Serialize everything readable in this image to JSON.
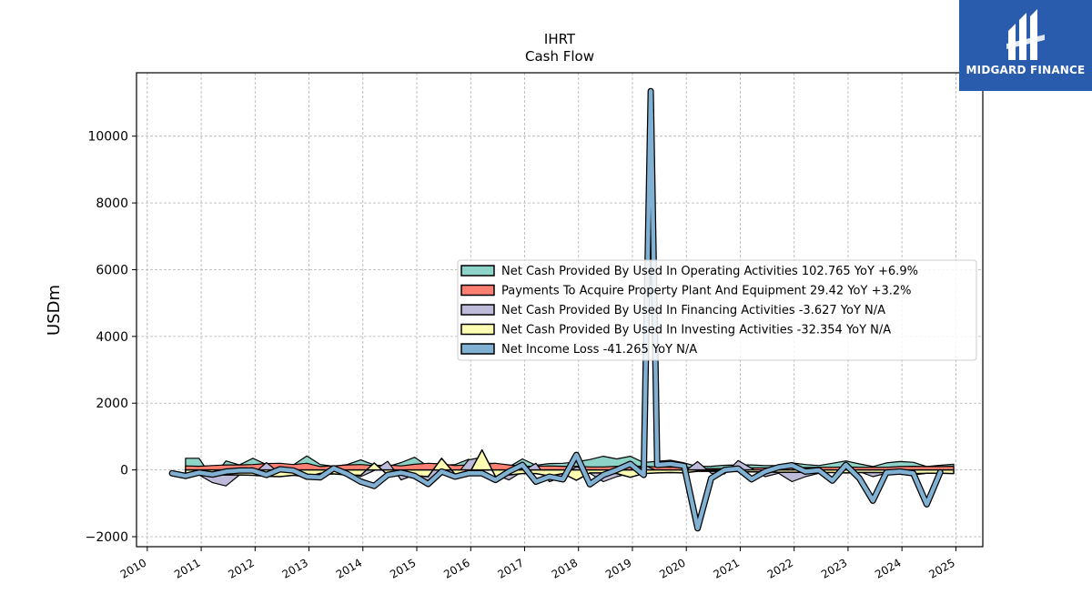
{
  "logo": {
    "text": "MIDGARD FINANCE",
    "icon": "midgard-finance-logo",
    "color": "#2a5cad"
  },
  "chart_data": {
    "type": "area",
    "title": "IHRT",
    "subtitle": "Cash Flow",
    "xlabel": "",
    "ylabel": "USDm",
    "xlim": [
      2009.8,
      2025.5
    ],
    "ylim": [
      -2300,
      11900
    ],
    "x_ticks": [
      "2010",
      "2011",
      "2012",
      "2013",
      "2014",
      "2015",
      "2016",
      "2017",
      "2018",
      "2019",
      "2020",
      "2021",
      "2022",
      "2023",
      "2024",
      "2025"
    ],
    "y_ticks": [
      -2000,
      0,
      2000,
      4000,
      6000,
      8000,
      10000
    ],
    "y_tick_labels": [
      "−2000",
      "0",
      "2000",
      "4000",
      "6000",
      "8000",
      "10000"
    ],
    "grid": true,
    "legend_position": "center-right",
    "series": [
      {
        "name": "Net Cash Provided By Used In Operating Activities  102.765 YoY +6.9%",
        "color": "#8dd3c7",
        "stroke_width": 1.2,
        "x": [
          2010.71,
          2010.96,
          2011.21,
          2011.46,
          2011.71,
          2011.96,
          2012.21,
          2012.46,
          2012.71,
          2012.96,
          2013.21,
          2013.46,
          2013.71,
          2013.96,
          2014.21,
          2014.46,
          2014.71,
          2014.96,
          2015.21,
          2015.46,
          2015.71,
          2015.96,
          2016.21,
          2016.46,
          2016.71,
          2016.96,
          2017.21,
          2017.46,
          2017.71,
          2017.96,
          2018.21,
          2018.46,
          2018.71,
          2018.96,
          2019.21,
          2019.46,
          2019.71,
          2019.96,
          2020.21,
          2020.46,
          2020.71,
          2020.96,
          2021.21,
          2021.46,
          2021.71,
          2021.96,
          2022.21,
          2022.46,
          2022.71,
          2022.96,
          2023.21,
          2023.46,
          2023.71,
          2023.96,
          2024.21,
          2024.46,
          2024.71,
          2024.96
        ],
        "y": [
          350,
          350,
          -250,
          270,
          150,
          350,
          160,
          190,
          150,
          420,
          160,
          110,
          160,
          300,
          150,
          100,
          220,
          380,
          100,
          140,
          160,
          320,
          200,
          200,
          90,
          330,
          140,
          190,
          200,
          240,
          310,
          410,
          330,
          410,
          220,
          260,
          290,
          210,
          100,
          110,
          140,
          150,
          150,
          130,
          130,
          210,
          160,
          130,
          200,
          270,
          180,
          100,
          210,
          250,
          230,
          100,
          140,
          170
        ]
      },
      {
        "name": "Payments To Acquire Property Plant And Equipment  29.42 YoY +3.2%",
        "color": "#fb8072",
        "stroke_width": 1.2,
        "x": [
          2010.71,
          2010.96,
          2011.21,
          2011.46,
          2011.71,
          2011.96,
          2012.21,
          2012.46,
          2012.71,
          2012.96,
          2013.21,
          2013.46,
          2013.71,
          2013.96,
          2014.21,
          2014.46,
          2014.71,
          2014.96,
          2015.21,
          2015.46,
          2015.71,
          2015.96,
          2016.21,
          2016.46,
          2016.71,
          2016.96,
          2017.21,
          2017.46,
          2017.71,
          2017.96,
          2018.21,
          2018.46,
          2018.71,
          2018.96,
          2019.21,
          2019.46,
          2019.71,
          2019.96,
          2020.21,
          2020.46,
          2020.71,
          2020.96,
          2021.21,
          2021.46,
          2021.71,
          2021.96,
          2022.21,
          2022.46,
          2022.71,
          2022.96,
          2023.21,
          2023.46,
          2023.71,
          2023.96,
          2024.21,
          2024.46,
          2024.71,
          2024.96
        ],
        "y": [
          120,
          110,
          130,
          150,
          150,
          160,
          190,
          200,
          160,
          200,
          100,
          120,
          150,
          160,
          130,
          150,
          120,
          170,
          200,
          180,
          130,
          150,
          160,
          200,
          150,
          110,
          110,
          120,
          110,
          110,
          90,
          90,
          110,
          120,
          110,
          90,
          80,
          90,
          40,
          40,
          40,
          50,
          60,
          60,
          70,
          70,
          70,
          80,
          80,
          90,
          80,
          80,
          80,
          100,
          110,
          100,
          100,
          110
        ]
      },
      {
        "name": "Net Cash Provided By Used In Financing Activities  -3.627 YoY N/A",
        "color": "#bebada",
        "stroke_width": 1.2,
        "x": [
          2010.71,
          2010.96,
          2011.21,
          2011.46,
          2011.71,
          2011.96,
          2012.21,
          2012.46,
          2012.71,
          2012.96,
          2013.21,
          2013.46,
          2013.71,
          2013.96,
          2014.21,
          2014.46,
          2014.71,
          2014.96,
          2015.21,
          2015.46,
          2015.71,
          2015.96,
          2016.21,
          2016.46,
          2016.71,
          2016.96,
          2017.21,
          2017.46,
          2017.71,
          2017.96,
          2018.21,
          2018.46,
          2018.71,
          2018.96,
          2019.21,
          2019.46,
          2019.71,
          2019.96,
          2020.21,
          2020.46,
          2020.71,
          2020.96,
          2021.21,
          2021.46,
          2021.71,
          2021.96,
          2022.21,
          2022.46,
          2022.71,
          2022.96,
          2023.21,
          2023.46,
          2023.71,
          2023.96,
          2024.21,
          2024.46,
          2024.71,
          2024.96
        ],
        "y": [
          -100,
          -150,
          -380,
          -480,
          -150,
          -130,
          220,
          -100,
          50,
          -250,
          -150,
          -120,
          -50,
          -200,
          -20,
          260,
          -300,
          -150,
          -320,
          0,
          -200,
          300,
          380,
          -150,
          -300,
          -50,
          200,
          -350,
          -200,
          100,
          -100,
          -350,
          -200,
          -100,
          150,
          -30,
          -80,
          -60,
          250,
          -100,
          -120,
          280,
          50,
          -200,
          -100,
          -350,
          -200,
          -100,
          0,
          0,
          -50,
          -200,
          -100,
          -120,
          -150,
          -100,
          -50,
          -60
        ]
      },
      {
        "name": "Net Cash Provided By Used In Investing Activities  -32.354 YoY N/A",
        "color": "#ffffb3",
        "stroke_width": 1.5,
        "x": [
          2010.71,
          2010.96,
          2011.21,
          2011.46,
          2011.71,
          2011.96,
          2012.21,
          2012.46,
          2012.71,
          2012.96,
          2013.21,
          2013.46,
          2013.71,
          2013.96,
          2014.21,
          2014.46,
          2014.71,
          2014.96,
          2015.21,
          2015.46,
          2015.71,
          2015.96,
          2016.21,
          2016.46,
          2016.71,
          2016.96,
          2017.21,
          2017.46,
          2017.71,
          2017.96,
          2018.21,
          2018.46,
          2018.71,
          2018.96,
          2019.21,
          2019.46,
          2019.71,
          2019.96,
          2020.21,
          2020.46,
          2020.71,
          2020.96,
          2021.21,
          2021.46,
          2021.71,
          2021.96,
          2022.21,
          2022.46,
          2022.71,
          2022.96,
          2023.21,
          2023.46,
          2023.71,
          2023.96,
          2024.21,
          2024.46,
          2024.71,
          2024.96
        ],
        "y": [
          -120,
          -100,
          -150,
          -150,
          -150,
          -160,
          -190,
          -200,
          -160,
          -200,
          -100,
          -120,
          -150,
          -160,
          210,
          -150,
          -120,
          -170,
          -200,
          350,
          -130,
          -150,
          600,
          -200,
          -150,
          -110,
          -110,
          -180,
          -110,
          -310,
          -90,
          -90,
          -110,
          -220,
          -110,
          -90,
          -80,
          -90,
          -40,
          -40,
          -40,
          -50,
          -60,
          -60,
          -70,
          -70,
          -70,
          -80,
          -80,
          -90,
          -80,
          -80,
          -80,
          -100,
          -110,
          -100,
          -100,
          -110
        ]
      },
      {
        "name": "Net Income Loss  -41.265 YoY N/A",
        "color": "#80b1d3",
        "stroke_width": 4.5,
        "x": [
          2010.46,
          2010.71,
          2010.96,
          2011.21,
          2011.46,
          2011.71,
          2011.96,
          2012.21,
          2012.46,
          2012.71,
          2012.96,
          2013.21,
          2013.46,
          2013.71,
          2013.96,
          2014.21,
          2014.46,
          2014.71,
          2014.96,
          2015.21,
          2015.46,
          2015.71,
          2015.96,
          2016.21,
          2016.46,
          2016.71,
          2016.96,
          2017.21,
          2017.46,
          2017.71,
          2017.96,
          2018.21,
          2018.46,
          2018.71,
          2018.96,
          2019.21,
          2019.34,
          2019.46,
          2019.71,
          2019.96,
          2020.21,
          2020.46,
          2020.71,
          2020.96,
          2021.21,
          2021.46,
          2021.71,
          2021.96,
          2022.21,
          2022.46,
          2022.71,
          2022.96,
          2023.21,
          2023.46,
          2023.71,
          2023.96,
          2024.21,
          2024.46,
          2024.71
        ],
        "y": [
          -100,
          -180,
          -80,
          -140,
          -50,
          -20,
          -20,
          -150,
          20,
          -20,
          -200,
          -220,
          50,
          -120,
          -350,
          -480,
          -150,
          -80,
          -180,
          -420,
          -50,
          -200,
          -100,
          -100,
          -300,
          -50,
          150,
          -350,
          -200,
          -280,
          450,
          -430,
          -150,
          0,
          180,
          -150,
          11350,
          150,
          180,
          120,
          -1750,
          -250,
          0,
          40,
          -280,
          -50,
          80,
          140,
          -50,
          -10,
          -320,
          150,
          -250,
          -920,
          -80,
          -50,
          -100,
          -1030,
          -70
        ]
      }
    ]
  }
}
